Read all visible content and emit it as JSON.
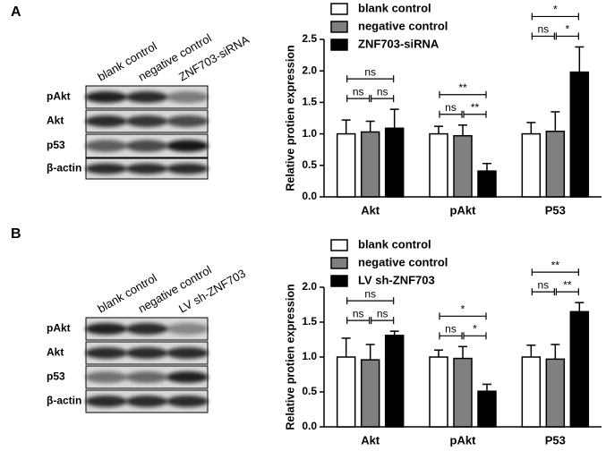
{
  "panels": [
    {
      "label": "A",
      "blot": {
        "columns": [
          "blank control",
          "negative control",
          "ZNF703-siRNA"
        ],
        "rows": [
          "pAkt",
          "Akt",
          "p53",
          "β-actin"
        ]
      }
    },
    {
      "label": "B",
      "blot": {
        "columns": [
          "blank control",
          "negative control",
          "LV sh-ZNF703"
        ],
        "rows": [
          "pAkt",
          "Akt",
          "p53",
          "β-actin"
        ]
      }
    }
  ],
  "chart_data": [
    {
      "type": "bar",
      "y_label": "Relative protien expression",
      "categories": [
        "Akt",
        "pAkt",
        "P53"
      ],
      "ylim": [
        0,
        2.5
      ],
      "yticks": [
        {
          "value": 0,
          "label": "0.0"
        },
        0.5,
        {
          "value": 1,
          "label": "1.0"
        },
        1.5,
        {
          "value": 2,
          "label": "2.0"
        },
        2.5
      ],
      "series": [
        {
          "name": "blank control",
          "color": "#ffffff",
          "values": [
            1.0,
            1.0,
            1.0
          ],
          "errors": [
            0.22,
            0.12,
            0.18
          ]
        },
        {
          "name": "negative control",
          "color": "#808080",
          "values": [
            1.03,
            0.97,
            1.04
          ],
          "errors": [
            0.17,
            0.17,
            0.31
          ]
        },
        {
          "name": "ZNF703-siRNA",
          "color": "#000000",
          "values": [
            1.09,
            0.41,
            1.98
          ],
          "errors": [
            0.3,
            0.12,
            0.4
          ]
        }
      ],
      "comparisons": [
        {
          "category": 0,
          "series": [
            0,
            1
          ],
          "text": "ns"
        },
        {
          "category": 0,
          "series": [
            1,
            2
          ],
          "text": "ns"
        },
        {
          "category": 0,
          "series": [
            0,
            2
          ],
          "text": "ns"
        },
        {
          "category": 1,
          "series": [
            0,
            1
          ],
          "text": "ns"
        },
        {
          "category": 1,
          "series": [
            1,
            2
          ],
          "text": "**"
        },
        {
          "category": 1,
          "series": [
            0,
            2
          ],
          "text": "**"
        },
        {
          "category": 2,
          "series": [
            0,
            1
          ],
          "text": "ns"
        },
        {
          "category": 2,
          "series": [
            1,
            2
          ],
          "text": "*"
        },
        {
          "category": 2,
          "series": [
            0,
            2
          ],
          "text": "*"
        }
      ]
    },
    {
      "type": "bar",
      "y_label": "Relative protien expression",
      "categories": [
        "Akt",
        "pAkt",
        "P53"
      ],
      "ylim": [
        0,
        2
      ],
      "yticks": [
        {
          "value": 0,
          "label": "0.0"
        },
        0.5,
        {
          "value": 1,
          "label": "1.0"
        },
        1.5,
        {
          "value": 2,
          "label": "2.0"
        }
      ],
      "series": [
        {
          "name": "blank control",
          "color": "#ffffff",
          "values": [
            1.0,
            1.0,
            1.0
          ],
          "errors": [
            0.27,
            0.1,
            0.17
          ]
        },
        {
          "name": "negative control",
          "color": "#808080",
          "values": [
            0.96,
            0.98,
            0.97
          ],
          "errors": [
            0.22,
            0.17,
            0.21
          ]
        },
        {
          "name": "LV sh-ZNF703",
          "color": "#000000",
          "values": [
            1.31,
            0.51,
            1.65
          ],
          "errors": [
            0.06,
            0.1,
            0.13
          ]
        }
      ],
      "comparisons": [
        {
          "category": 0,
          "series": [
            0,
            1
          ],
          "text": "ns"
        },
        {
          "category": 0,
          "series": [
            1,
            2
          ],
          "text": "ns"
        },
        {
          "category": 0,
          "series": [
            0,
            2
          ],
          "text": "ns"
        },
        {
          "category": 1,
          "series": [
            0,
            1
          ],
          "text": "ns"
        },
        {
          "category": 1,
          "series": [
            1,
            2
          ],
          "text": "*"
        },
        {
          "category": 1,
          "series": [
            0,
            2
          ],
          "text": "*"
        },
        {
          "category": 2,
          "series": [
            0,
            1
          ],
          "text": "ns"
        },
        {
          "category": 2,
          "series": [
            1,
            2
          ],
          "text": "**"
        },
        {
          "category": 2,
          "series": [
            0,
            2
          ],
          "text": "**"
        }
      ]
    }
  ]
}
